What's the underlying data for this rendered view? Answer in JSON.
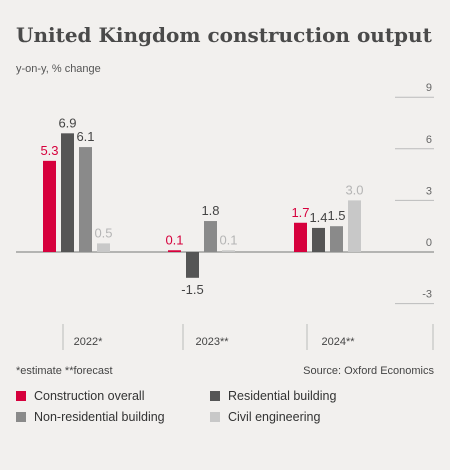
{
  "chart_data": {
    "type": "bar",
    "title": "United Kingdom construction output",
    "subtitle": "y-on-y, % change",
    "categories": [
      "2022*",
      "2023**",
      "2024**"
    ],
    "series": [
      {
        "name": "Construction overall",
        "color": "#d6003c",
        "values": [
          5.3,
          0.1,
          1.7
        ]
      },
      {
        "name": "Residential building",
        "color": "#555555",
        "values": [
          6.9,
          -1.5,
          1.4
        ]
      },
      {
        "name": "Non-residential building",
        "color": "#8a8a8a",
        "values": [
          6.1,
          1.8,
          1.5
        ]
      },
      {
        "name": "Civil engineering",
        "color": "#c8c8c8",
        "values": [
          0.5,
          0.1,
          3.0
        ]
      }
    ],
    "value_labels": [
      [
        "5.3",
        "0.1",
        "1.7"
      ],
      [
        "6.9",
        "-1.5",
        "1.4"
      ],
      [
        "6.1",
        "1.8",
        "1.5"
      ],
      [
        "0.5",
        "0.1",
        "3.0"
      ]
    ],
    "y_ticks": [
      9,
      6,
      3,
      0,
      -3
    ],
    "ylim": [
      -3,
      9
    ],
    "y_axis_position": "right",
    "grid": true,
    "legend_position": "bottom"
  },
  "notes": {
    "left": "*estimate  **forecast",
    "right": "Source: Oxford Economics"
  }
}
